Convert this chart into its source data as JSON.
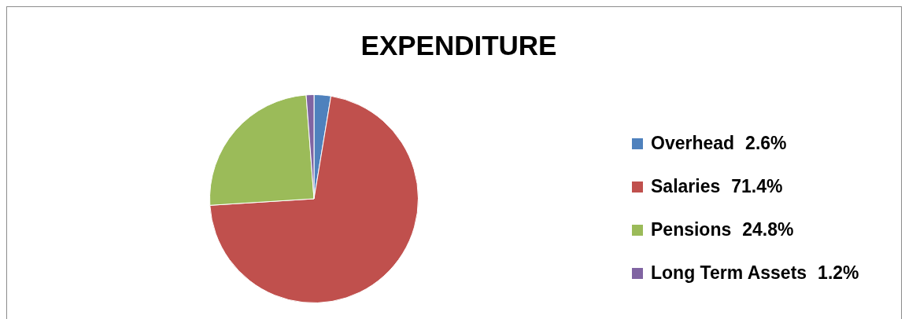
{
  "chart_data": {
    "type": "pie",
    "title": "EXPENDITURE",
    "categories": [
      "Overhead",
      "Salaries",
      "Pensions",
      "Long Term Assets"
    ],
    "values": [
      2.6,
      71.4,
      24.8,
      1.2
    ],
    "value_labels": [
      "2.6%",
      "71.4%",
      "24.8%",
      "1.2%"
    ],
    "colors": [
      "#4f81bd",
      "#c0504d",
      "#9bbb59",
      "#8064a2"
    ],
    "legend": "right"
  }
}
